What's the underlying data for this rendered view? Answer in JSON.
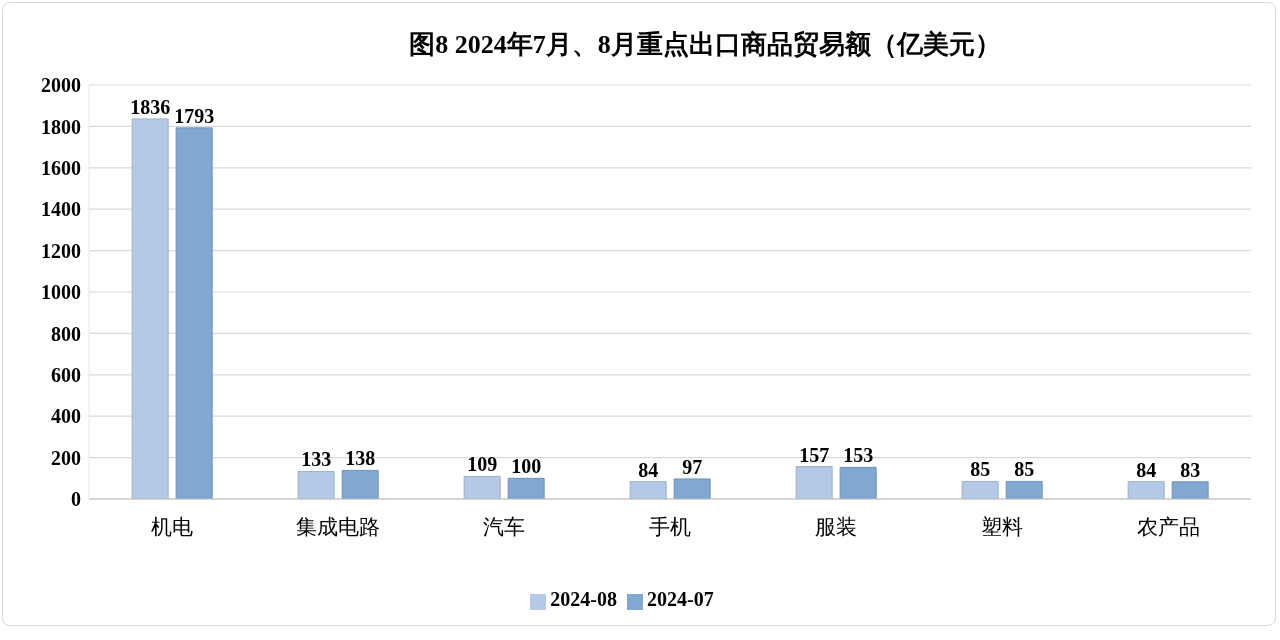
{
  "chart_data": {
    "type": "bar",
    "title": "图8 2024年7月、8月重点出口商品贸易额（亿美元）",
    "categories": [
      "机电",
      "集成电路",
      "汽车",
      "手机",
      "服装",
      "塑料",
      "农产品"
    ],
    "series": [
      {
        "name": "2024-08",
        "color": "#b4c9e6",
        "values": [
          1836,
          133,
          109,
          84,
          157,
          85,
          84
        ]
      },
      {
        "name": "2024-07",
        "color": "#80a8d2",
        "values": [
          1793,
          138,
          100,
          97,
          153,
          85,
          83
        ]
      }
    ],
    "ylim": [
      0,
      2000
    ],
    "yticks": [
      0,
      200,
      400,
      600,
      800,
      1000,
      1200,
      1400,
      1600,
      1800,
      2000
    ],
    "grid": "y",
    "legend": "bottom",
    "data_labels": true
  }
}
